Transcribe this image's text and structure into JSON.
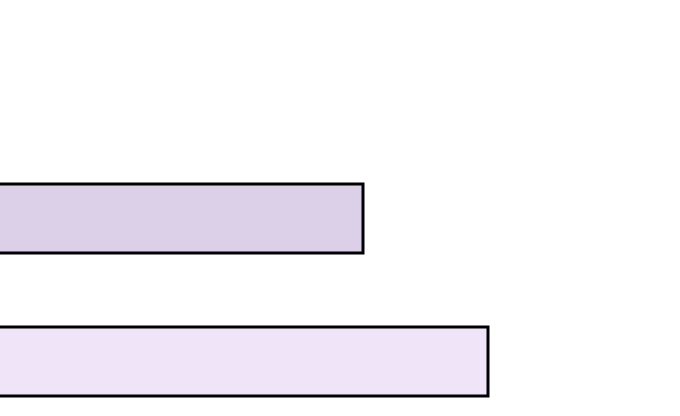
{
  "chart_data": {
    "type": "bar",
    "orientation": "horizontal",
    "categories": [
      null,
      null
    ],
    "values": [
      363,
      488
    ],
    "colors": [
      "#dccfe8",
      "#f0e5f8"
    ],
    "xlim": [
      0,
      680
    ]
  }
}
